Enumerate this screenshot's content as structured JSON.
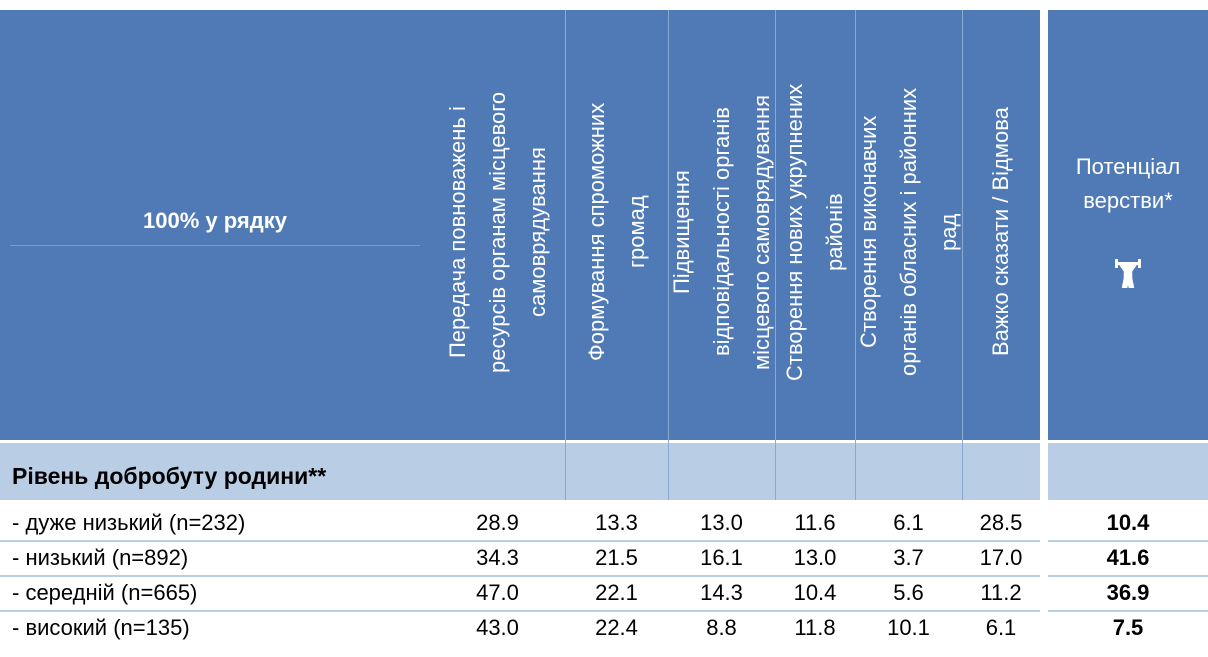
{
  "header": {
    "title": "100% у рядку",
    "columns": [
      [
        "Передача повноважень і",
        "ресурсів органам місцевого",
        "самоврядування"
      ],
      [
        "Формування спроможних",
        "громад"
      ],
      [
        "Підвищення",
        "відповідальності органів",
        "місцевого самоврядування"
      ],
      [
        "Створення нових укрупнених",
        "районів"
      ],
      [
        "Створення виконавчих",
        "органів обласних і районних",
        "рад"
      ],
      [
        "Важко сказати / Відмова"
      ]
    ],
    "potential": [
      "Потенціал",
      "верстви*"
    ]
  },
  "group": "Рівень добробуту родини**",
  "rows": [
    {
      "label": "- дуже низький (n=232)",
      "values": [
        "28.9",
        "13.3",
        "13.0",
        "11.6",
        "6.1",
        "28.5"
      ],
      "potential": "10.4"
    },
    {
      "label": "- низький (n=892)",
      "values": [
        "34.3",
        "21.5",
        "16.1",
        "13.0",
        "3.7",
        "17.0"
      ],
      "potential": "41.6"
    },
    {
      "label": "- середній (n=665)",
      "values": [
        "47.0",
        "22.1",
        "14.3",
        "10.4",
        "5.6",
        "11.2"
      ],
      "potential": "36.9"
    },
    {
      "label": "- високий (n=135)",
      "values": [
        "43.0",
        "22.4",
        "8.8",
        "11.8",
        "10.1",
        "6.1"
      ],
      "potential": "7.5"
    }
  ]
}
